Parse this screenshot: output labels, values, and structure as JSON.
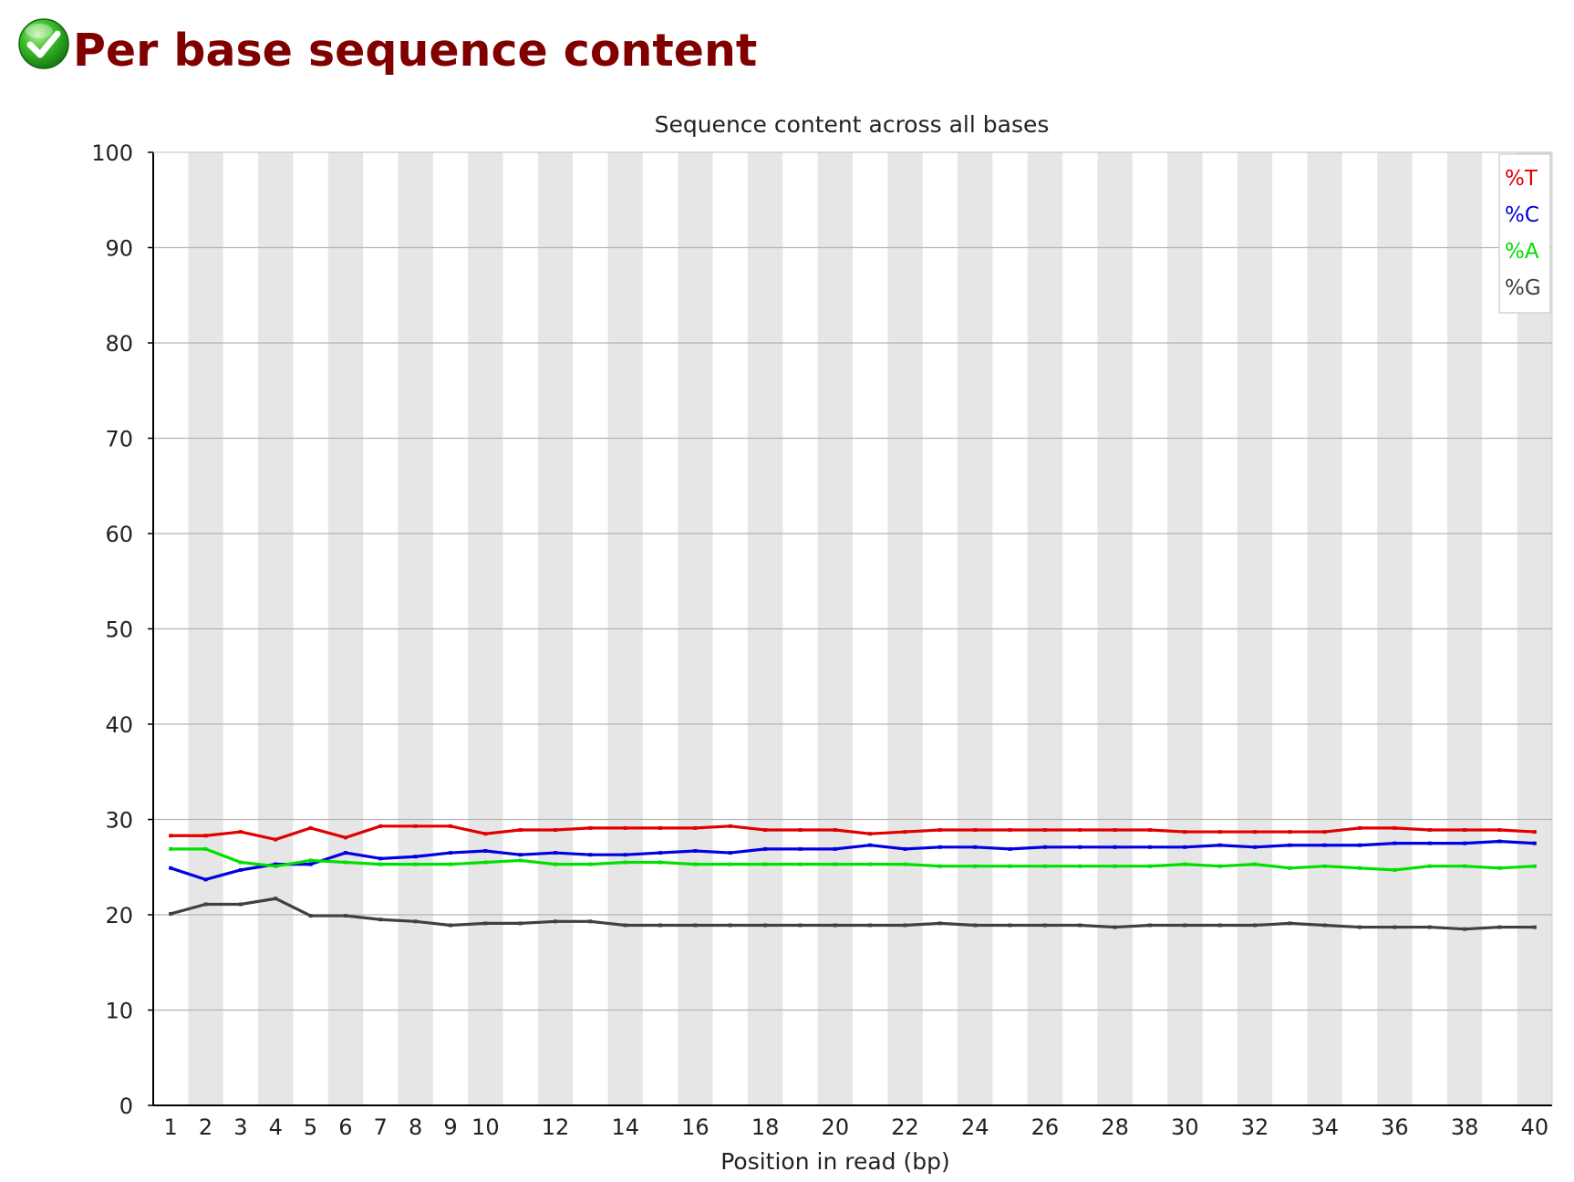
{
  "header": {
    "title": "Per base sequence content",
    "status_icon": "pass-check-icon"
  },
  "chart_data": {
    "type": "line",
    "title": "Sequence content across all bases",
    "xlabel": "Position in read (bp)",
    "ylabel": "",
    "ylim": [
      0,
      100
    ],
    "yticks": [
      0,
      10,
      20,
      30,
      40,
      50,
      60,
      70,
      80,
      90,
      100
    ],
    "x": [
      1,
      2,
      3,
      4,
      5,
      6,
      7,
      8,
      9,
      10,
      11,
      12,
      13,
      14,
      15,
      16,
      17,
      18,
      19,
      20,
      21,
      22,
      23,
      24,
      25,
      26,
      27,
      28,
      29,
      30,
      31,
      32,
      33,
      34,
      35,
      36,
      37,
      38,
      39,
      40
    ],
    "xtick_labels": [
      "1",
      "2",
      "3",
      "4",
      "5",
      "6",
      "7",
      "8",
      "9",
      "10",
      "12",
      "14",
      "16",
      "18",
      "20",
      "22",
      "24",
      "26",
      "28",
      "30",
      "32",
      "34",
      "36",
      "38",
      "40"
    ],
    "grid": true,
    "alternating_column_shading": true,
    "legend_position": "top-right",
    "series": [
      {
        "name": "%T",
        "color": "#e00000",
        "values": [
          28.3,
          28.3,
          28.7,
          27.9,
          29.1,
          28.1,
          29.3,
          29.3,
          29.3,
          28.5,
          28.9,
          28.9,
          29.1,
          29.1,
          29.1,
          29.1,
          29.3,
          28.9,
          28.9,
          28.9,
          28.5,
          28.7,
          28.9,
          28.9,
          28.9,
          28.9,
          28.9,
          28.9,
          28.9,
          28.7,
          28.7,
          28.7,
          28.7,
          28.7,
          29.1,
          29.1,
          28.9,
          28.9,
          28.9,
          28.7
        ]
      },
      {
        "name": "%C",
        "color": "#0000e0",
        "values": [
          24.9,
          23.7,
          24.7,
          25.3,
          25.3,
          26.5,
          25.9,
          26.1,
          26.5,
          26.7,
          26.3,
          26.5,
          26.3,
          26.3,
          26.5,
          26.7,
          26.5,
          26.9,
          26.9,
          26.9,
          27.3,
          26.9,
          27.1,
          27.1,
          26.9,
          27.1,
          27.1,
          27.1,
          27.1,
          27.1,
          27.3,
          27.1,
          27.3,
          27.3,
          27.3,
          27.5,
          27.5,
          27.5,
          27.7,
          27.5
        ]
      },
      {
        "name": "%A",
        "color": "#00e000",
        "values": [
          26.9,
          26.9,
          25.5,
          25.1,
          25.7,
          25.5,
          25.3,
          25.3,
          25.3,
          25.5,
          25.7,
          25.3,
          25.3,
          25.5,
          25.5,
          25.3,
          25.3,
          25.3,
          25.3,
          25.3,
          25.3,
          25.3,
          25.1,
          25.1,
          25.1,
          25.1,
          25.1,
          25.1,
          25.1,
          25.3,
          25.1,
          25.3,
          24.9,
          25.1,
          24.9,
          24.7,
          25.1,
          25.1,
          24.9,
          25.1
        ]
      },
      {
        "name": "%G",
        "color": "#404040",
        "values": [
          20.1,
          21.1,
          21.1,
          21.7,
          19.9,
          19.9,
          19.5,
          19.3,
          18.9,
          19.1,
          19.1,
          19.3,
          19.3,
          18.9,
          18.9,
          18.9,
          18.9,
          18.9,
          18.9,
          18.9,
          18.9,
          18.9,
          19.1,
          18.9,
          18.9,
          18.9,
          18.9,
          18.7,
          18.9,
          18.9,
          18.9,
          18.9,
          19.1,
          18.9,
          18.7,
          18.7,
          18.7,
          18.5,
          18.7,
          18.7
        ]
      }
    ]
  }
}
